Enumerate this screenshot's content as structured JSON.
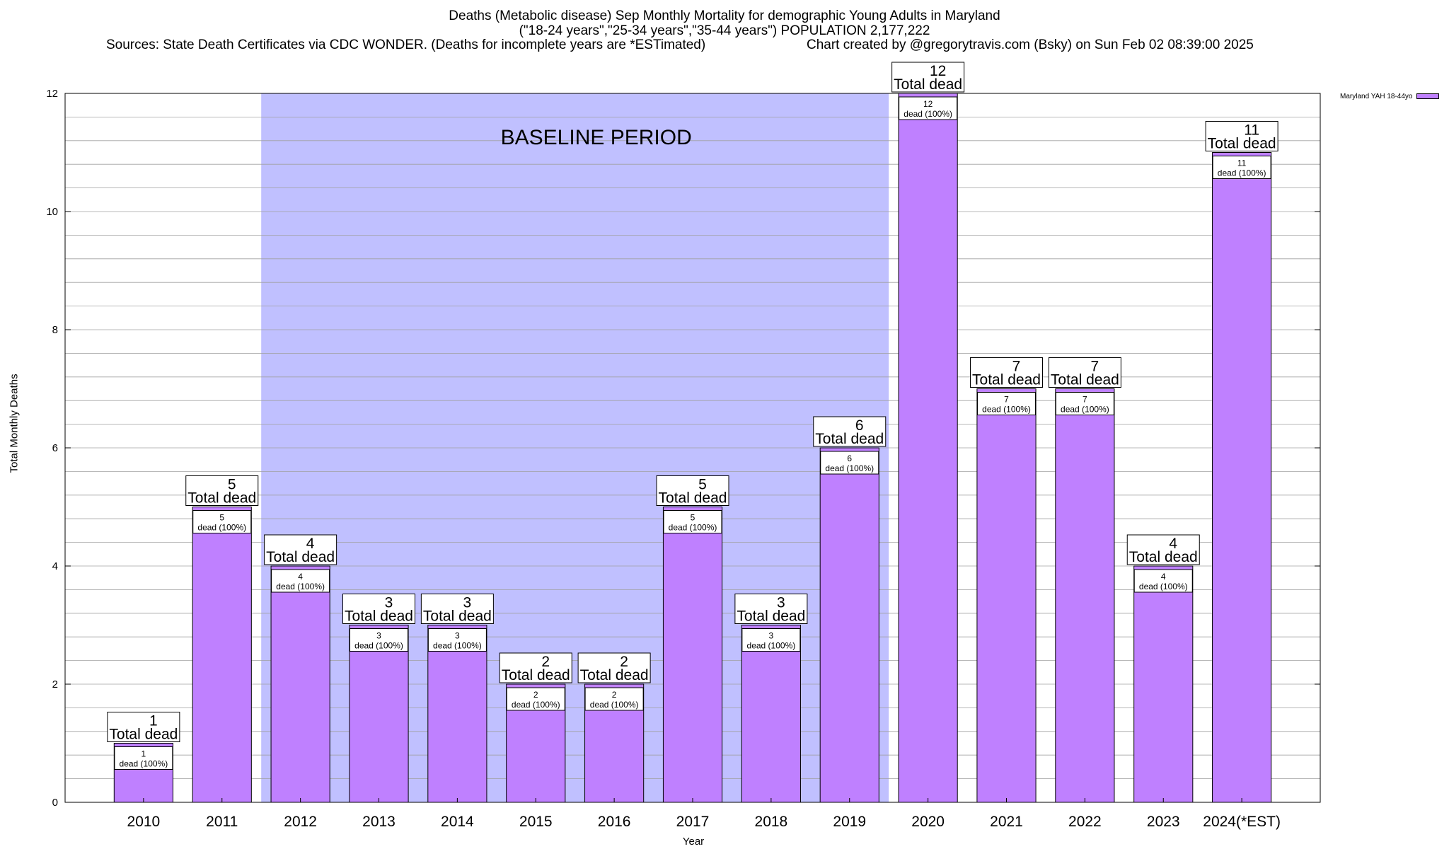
{
  "title": {
    "line1": "Deaths (Metabolic disease) Sep Monthly Mortality for demographic Young Adults in Maryland",
    "line2": "(\"18-24 years\",\"25-34 years\",\"35-44 years\") POPULATION 2,177,222",
    "line3": "Sources: State Death Certificates via CDC WONDER. (Deaths for incomplete years are *ESTimated)",
    "line4": "Chart created by @gregorytravis.com (Bsky) on Sun Feb 02 08:39:00 2025"
  },
  "chart_data": {
    "type": "bar",
    "categories": [
      "2010",
      "2011",
      "2012",
      "2013",
      "2014",
      "2015",
      "2016",
      "2017",
      "2018",
      "2019",
      "2020",
      "2021",
      "2022",
      "2023",
      "2024(*EST)"
    ],
    "series": [
      {
        "name": "Maryland YAH 18-44yo",
        "values": [
          1,
          5,
          4,
          3,
          3,
          2,
          2,
          5,
          3,
          6,
          12,
          7,
          7,
          4,
          11
        ]
      }
    ],
    "xlabel": "Year",
    "ylabel": "Total Monthly Deaths",
    "ylim": [
      0,
      12
    ],
    "yticks": [
      0,
      2,
      4,
      6,
      8,
      10,
      12
    ],
    "grid": true,
    "legend_position": "top-right",
    "bar_label_top": "Total dead",
    "bar_label_inner": "dead (100%)",
    "baseline": {
      "label": "BASELINE PERIOD",
      "from": "2012",
      "to": "2019"
    },
    "colors": {
      "bar": "#bf80ff",
      "baseline": "#c0c0ff",
      "grid": "#a0a0a0"
    }
  }
}
